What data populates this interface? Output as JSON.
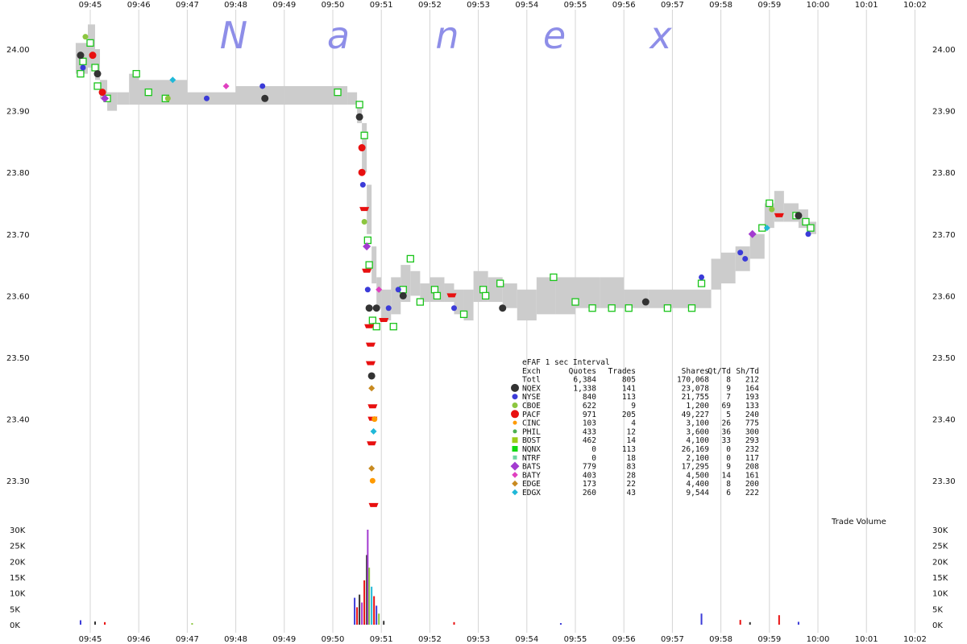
{
  "chart_data": {
    "type": "scatter",
    "title": "",
    "watermark": [
      "N",
      "a",
      "n",
      "e",
      "x"
    ],
    "time_labels": [
      "09:45",
      "09:46",
      "09:47",
      "09:48",
      "09:49",
      "09:50",
      "09:51",
      "09:52",
      "09:53",
      "09:54",
      "09:55",
      "09:56",
      "09:57",
      "09:58",
      "09:59",
      "10:00",
      "10:01",
      "10:02"
    ],
    "price_axis": {
      "ticks": [
        "23.30",
        "23.40",
        "23.50",
        "23.60",
        "23.70",
        "23.80",
        "23.90",
        "24.00"
      ],
      "ylim": [
        23.23,
        24.09
      ]
    },
    "volume_axis": {
      "title": "Trade Volume",
      "ticks": [
        "0K",
        "5K",
        "10K",
        "15K",
        "20K",
        "25K",
        "30K"
      ],
      "ylim": [
        0,
        30000
      ]
    },
    "nbbo_band": [
      [
        44.7,
        23.96,
        24.01
      ],
      [
        44.95,
        23.97,
        24.04
      ],
      [
        45.1,
        23.95,
        24.0
      ],
      [
        45.2,
        23.92,
        23.95
      ],
      [
        45.35,
        23.9,
        23.93
      ],
      [
        45.55,
        23.91,
        23.93
      ],
      [
        45.8,
        23.91,
        23.96
      ],
      [
        46.0,
        23.91,
        23.95
      ],
      [
        47.0,
        23.91,
        23.93
      ],
      [
        48.0,
        23.91,
        23.94
      ],
      [
        49.0,
        23.91,
        23.94
      ],
      [
        50.0,
        23.91,
        23.94
      ],
      [
        50.3,
        23.91,
        23.93
      ],
      [
        50.5,
        23.88,
        23.91
      ],
      [
        50.6,
        23.8,
        23.88
      ],
      [
        50.7,
        23.7,
        23.78
      ],
      [
        50.8,
        23.62,
        23.68
      ],
      [
        50.9,
        23.58,
        23.63
      ],
      [
        51.0,
        23.56,
        23.61
      ],
      [
        51.2,
        23.57,
        23.63
      ],
      [
        51.4,
        23.59,
        23.65
      ],
      [
        51.6,
        23.6,
        23.64
      ],
      [
        51.8,
        23.59,
        23.62
      ],
      [
        52.0,
        23.59,
        23.63
      ],
      [
        52.3,
        23.59,
        23.62
      ],
      [
        52.5,
        23.57,
        23.61
      ],
      [
        52.7,
        23.56,
        23.61
      ],
      [
        52.9,
        23.59,
        23.64
      ],
      [
        53.2,
        23.59,
        23.63
      ],
      [
        53.5,
        23.58,
        23.62
      ],
      [
        53.8,
        23.56,
        23.61
      ],
      [
        54.2,
        23.57,
        23.63
      ],
      [
        54.6,
        23.57,
        23.63
      ],
      [
        55.0,
        23.58,
        23.63
      ],
      [
        55.5,
        23.58,
        23.63
      ],
      [
        56.0,
        23.58,
        23.61
      ],
      [
        56.5,
        23.58,
        23.61
      ],
      [
        57.0,
        23.58,
        23.61
      ],
      [
        57.5,
        23.58,
        23.61
      ],
      [
        57.8,
        23.61,
        23.66
      ],
      [
        58.0,
        23.62,
        23.67
      ],
      [
        58.3,
        23.64,
        23.68
      ],
      [
        58.6,
        23.66,
        23.7
      ],
      [
        58.9,
        23.71,
        23.75
      ],
      [
        59.1,
        23.72,
        23.77
      ],
      [
        59.3,
        23.72,
        23.75
      ],
      [
        59.6,
        23.71,
        23.74
      ],
      [
        59.8,
        23.7,
        23.72
      ]
    ],
    "trades": [
      {
        "t": 44.8,
        "p": 23.99,
        "ex": "NQEX"
      },
      {
        "t": 44.85,
        "p": 23.97,
        "ex": "NYSE"
      },
      {
        "t": 44.9,
        "p": 24.02,
        "ex": "CBOE"
      },
      {
        "t": 45.05,
        "p": 23.99,
        "ex": "PACF"
      },
      {
        "t": 45.15,
        "p": 23.96,
        "ex": "NQEX"
      },
      {
        "t": 45.25,
        "p": 23.93,
        "ex": "PACF"
      },
      {
        "t": 45.3,
        "p": 23.92,
        "ex": "BATS"
      },
      {
        "t": 46.6,
        "p": 23.92,
        "ex": "CBOE"
      },
      {
        "t": 46.7,
        "p": 23.95,
        "ex": "EDGX"
      },
      {
        "t": 47.4,
        "p": 23.92,
        "ex": "NYSE"
      },
      {
        "t": 47.8,
        "p": 23.94,
        "ex": "BATY"
      },
      {
        "t": 48.55,
        "p": 23.94,
        "ex": "NYSE"
      },
      {
        "t": 48.6,
        "p": 23.92,
        "ex": "NQEX"
      },
      {
        "t": 50.55,
        "p": 23.89,
        "ex": "NQEX"
      },
      {
        "t": 50.6,
        "p": 23.84,
        "ex": "PACF"
      },
      {
        "t": 50.6,
        "p": 23.8,
        "ex": "PACF"
      },
      {
        "t": 50.62,
        "p": 23.78,
        "ex": "NYSE"
      },
      {
        "t": 50.65,
        "p": 23.74,
        "ex": "PACF"
      },
      {
        "t": 50.65,
        "p": 23.72,
        "ex": "CBOE"
      },
      {
        "t": 50.7,
        "p": 23.68,
        "ex": "BATS"
      },
      {
        "t": 50.7,
        "p": 23.64,
        "ex": "PACF"
      },
      {
        "t": 50.72,
        "p": 23.61,
        "ex": "NYSE"
      },
      {
        "t": 50.75,
        "p": 23.58,
        "ex": "NQEX"
      },
      {
        "t": 50.75,
        "p": 23.55,
        "ex": "PACF"
      },
      {
        "t": 50.78,
        "p": 23.52,
        "ex": "PACF"
      },
      {
        "t": 50.78,
        "p": 23.49,
        "ex": "PACF"
      },
      {
        "t": 50.8,
        "p": 23.47,
        "ex": "NQEX"
      },
      {
        "t": 50.8,
        "p": 23.45,
        "ex": "EDGE"
      },
      {
        "t": 50.82,
        "p": 23.42,
        "ex": "PACF"
      },
      {
        "t": 50.82,
        "p": 23.4,
        "ex": "PACF"
      },
      {
        "t": 50.84,
        "p": 23.38,
        "ex": "EDGX"
      },
      {
        "t": 50.8,
        "p": 23.36,
        "ex": "PACF"
      },
      {
        "t": 50.8,
        "p": 23.32,
        "ex": "EDGE"
      },
      {
        "t": 50.82,
        "p": 23.3,
        "ex": "CINC"
      },
      {
        "t": 50.84,
        "p": 23.26,
        "ex": "PACF"
      },
      {
        "t": 50.86,
        "p": 23.4,
        "ex": "CINC"
      },
      {
        "t": 50.9,
        "p": 23.58,
        "ex": "NQEX"
      },
      {
        "t": 50.95,
        "p": 23.61,
        "ex": "BATY"
      },
      {
        "t": 51.05,
        "p": 23.56,
        "ex": "PACF"
      },
      {
        "t": 51.15,
        "p": 23.58,
        "ex": "NYSE"
      },
      {
        "t": 51.35,
        "p": 23.61,
        "ex": "NYSE"
      },
      {
        "t": 51.45,
        "p": 23.6,
        "ex": "NQEX"
      },
      {
        "t": 52.45,
        "p": 23.6,
        "ex": "PACF"
      },
      {
        "t": 52.5,
        "p": 23.58,
        "ex": "NYSE"
      },
      {
        "t": 53.5,
        "p": 23.58,
        "ex": "NQEX"
      },
      {
        "t": 56.45,
        "p": 23.59,
        "ex": "NQEX"
      },
      {
        "t": 57.6,
        "p": 23.63,
        "ex": "NYSE"
      },
      {
        "t": 58.4,
        "p": 23.67,
        "ex": "NYSE"
      },
      {
        "t": 58.5,
        "p": 23.66,
        "ex": "NYSE"
      },
      {
        "t": 58.65,
        "p": 23.7,
        "ex": "BATS"
      },
      {
        "t": 59.2,
        "p": 23.73,
        "ex": "PACF"
      },
      {
        "t": 59.6,
        "p": 23.73,
        "ex": "NQEX"
      },
      {
        "t": 59.8,
        "p": 23.7,
        "ex": "NYSE"
      },
      {
        "t": 58.95,
        "p": 23.71,
        "ex": "EDGX"
      },
      {
        "t": 59.05,
        "p": 23.74,
        "ex": "CBOE"
      }
    ],
    "quotes": [
      {
        "t": 44.8,
        "p": 23.96
      },
      {
        "t": 44.85,
        "p": 23.98
      },
      {
        "t": 45.0,
        "p": 24.01
      },
      {
        "t": 45.1,
        "p": 23.97
      },
      {
        "t": 45.15,
        "p": 23.94
      },
      {
        "t": 45.35,
        "p": 23.92
      },
      {
        "t": 45.95,
        "p": 23.96
      },
      {
        "t": 46.2,
        "p": 23.93
      },
      {
        "t": 46.55,
        "p": 23.92
      },
      {
        "t": 50.1,
        "p": 23.93
      },
      {
        "t": 50.55,
        "p": 23.91
      },
      {
        "t": 50.65,
        "p": 23.86
      },
      {
        "t": 50.72,
        "p": 23.69
      },
      {
        "t": 50.75,
        "p": 23.65
      },
      {
        "t": 50.82,
        "p": 23.56
      },
      {
        "t": 50.9,
        "p": 23.55
      },
      {
        "t": 51.25,
        "p": 23.55
      },
      {
        "t": 51.45,
        "p": 23.61
      },
      {
        "t": 51.6,
        "p": 23.66
      },
      {
        "t": 51.8,
        "p": 23.59
      },
      {
        "t": 52.1,
        "p": 23.61
      },
      {
        "t": 52.15,
        "p": 23.6
      },
      {
        "t": 52.7,
        "p": 23.57
      },
      {
        "t": 53.1,
        "p": 23.61
      },
      {
        "t": 53.15,
        "p": 23.6
      },
      {
        "t": 53.45,
        "p": 23.62
      },
      {
        "t": 54.55,
        "p": 23.63
      },
      {
        "t": 55.0,
        "p": 23.59
      },
      {
        "t": 55.35,
        "p": 23.58
      },
      {
        "t": 55.75,
        "p": 23.58
      },
      {
        "t": 56.1,
        "p": 23.58
      },
      {
        "t": 56.9,
        "p": 23.58
      },
      {
        "t": 57.4,
        "p": 23.58
      },
      {
        "t": 57.6,
        "p": 23.62
      },
      {
        "t": 58.85,
        "p": 23.71
      },
      {
        "t": 59.0,
        "p": 23.75
      },
      {
        "t": 59.55,
        "p": 23.73
      },
      {
        "t": 59.75,
        "p": 23.72
      },
      {
        "t": 59.85,
        "p": 23.71
      }
    ],
    "volume_bars": [
      {
        "t": 44.8,
        "v": 1400,
        "ex": "NYSE"
      },
      {
        "t": 45.1,
        "v": 1000,
        "ex": "NQEX"
      },
      {
        "t": 45.3,
        "v": 800,
        "ex": "PACF"
      },
      {
        "t": 47.1,
        "v": 500,
        "ex": "CBOE"
      },
      {
        "t": 50.45,
        "v": 8500,
        "ex": "NYSE"
      },
      {
        "t": 50.5,
        "v": 5500,
        "ex": "PACF"
      },
      {
        "t": 50.55,
        "v": 9500,
        "ex": "NQEX"
      },
      {
        "t": 50.6,
        "v": 7000,
        "ex": "BATS"
      },
      {
        "t": 50.65,
        "v": 14000,
        "ex": "PACF"
      },
      {
        "t": 50.7,
        "v": 22000,
        "ex": "NQEX"
      },
      {
        "t": 50.72,
        "v": 30000,
        "ex": "BATS"
      },
      {
        "t": 50.75,
        "v": 18000,
        "ex": "CBOE"
      },
      {
        "t": 50.8,
        "v": 12000,
        "ex": "EDGX"
      },
      {
        "t": 50.85,
        "v": 9000,
        "ex": "PACF"
      },
      {
        "t": 50.9,
        "v": 6000,
        "ex": "NYSE"
      },
      {
        "t": 50.95,
        "v": 3500,
        "ex": "CBOE"
      },
      {
        "t": 51.05,
        "v": 1200,
        "ex": "NQEX"
      },
      {
        "t": 52.5,
        "v": 800,
        "ex": "PACF"
      },
      {
        "t": 54.7,
        "v": 500,
        "ex": "NYSE"
      },
      {
        "t": 57.6,
        "v": 3500,
        "ex": "NYSE"
      },
      {
        "t": 58.4,
        "v": 1500,
        "ex": "PACF"
      },
      {
        "t": 58.6,
        "v": 800,
        "ex": "NQEX"
      },
      {
        "t": 59.2,
        "v": 3000,
        "ex": "PACF"
      },
      {
        "t": 59.6,
        "v": 900,
        "ex": "NYSE"
      }
    ],
    "stats_table": {
      "title": "eFAF 1 sec Interval",
      "headers": [
        "Exch",
        "Quotes",
        "Trades",
        "Shares",
        "Qt/Td",
        "Sh/Td"
      ],
      "rows": [
        {
          "exch": "Totl",
          "quotes": "6,384",
          "trades": "805",
          "shares": "170,068",
          "qt": "8",
          "sh": "212",
          "color": "",
          "marker": ""
        },
        {
          "exch": "NQEX",
          "quotes": "1,338",
          "trades": "141",
          "shares": "23,078",
          "qt": "9",
          "sh": "164",
          "color": "#333333",
          "marker": "circle-big"
        },
        {
          "exch": "NYSE",
          "quotes": "840",
          "trades": "113",
          "shares": "21,755",
          "qt": "7",
          "sh": "193",
          "color": "#3b3bd8",
          "marker": "circle"
        },
        {
          "exch": "CBOE",
          "quotes": "622",
          "trades": "9",
          "shares": "1,200",
          "qt": "69",
          "sh": "133",
          "color": "#8cc63f",
          "marker": "circle"
        },
        {
          "exch": "PACF",
          "quotes": "971",
          "trades": "205",
          "shares": "49,227",
          "qt": "5",
          "sh": "240",
          "color": "#e81010",
          "marker": "circle-big"
        },
        {
          "exch": "CINC",
          "quotes": "103",
          "trades": "4",
          "shares": "3,100",
          "qt": "26",
          "sh": "775",
          "color": "#ff9a00",
          "marker": "circle-small"
        },
        {
          "exch": "PHIL",
          "quotes": "433",
          "trades": "12",
          "shares": "3,600",
          "qt": "36",
          "sh": "300",
          "color": "#4caf50",
          "marker": "circle-small"
        },
        {
          "exch": "BOST",
          "quotes": "462",
          "trades": "14",
          "shares": "4,100",
          "qt": "33",
          "sh": "293",
          "color": "#9ccc1a",
          "marker": "square"
        },
        {
          "exch": "NQNX",
          "quotes": "0",
          "trades": "113",
          "shares": "26,169",
          "qt": "0",
          "sh": "232",
          "color": "#12d812",
          "marker": "square"
        },
        {
          "exch": "NTRF",
          "quotes": "0",
          "trades": "18",
          "shares": "2,100",
          "qt": "0",
          "sh": "117",
          "color": "#6dd6a0",
          "marker": "square-small"
        },
        {
          "exch": "BATS",
          "quotes": "779",
          "trades": "83",
          "shares": "17,295",
          "qt": "9",
          "sh": "208",
          "color": "#a33bd0",
          "marker": "diamond-big"
        },
        {
          "exch": "BATY",
          "quotes": "403",
          "trades": "28",
          "shares": "4,500",
          "qt": "14",
          "sh": "161",
          "color": "#e040c0",
          "marker": "diamond"
        },
        {
          "exch": "EDGE",
          "quotes": "173",
          "trades": "22",
          "shares": "4,400",
          "qt": "8",
          "sh": "200",
          "color": "#c88a20",
          "marker": "diamond"
        },
        {
          "exch": "EDGX",
          "quotes": "260",
          "trades": "43",
          "shares": "9,544",
          "qt": "6",
          "sh": "222",
          "color": "#20b8d8",
          "marker": "diamond"
        }
      ]
    },
    "colors": {
      "band": "#cccccc",
      "grid": "#d4d4d4",
      "quote_square": "#19c419"
    }
  }
}
